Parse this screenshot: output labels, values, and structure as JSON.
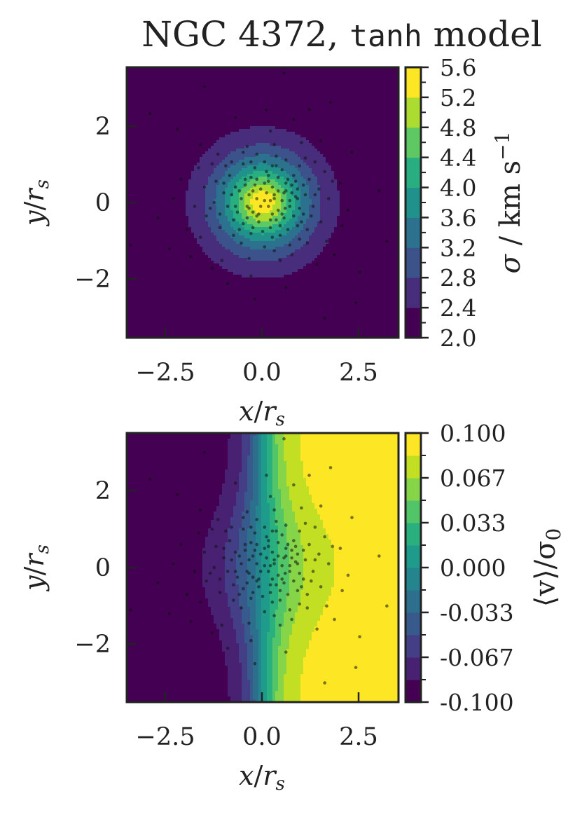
{
  "title": {
    "prefix": "NGC 4372, ",
    "code": "tanh",
    "suffix": " model"
  },
  "chart_data": [
    {
      "type": "heatmap",
      "name": "velocity-dispersion-map",
      "field": "radial",
      "x_tick_labels": [
        "−2.5",
        "0.0",
        "2.5"
      ],
      "y_tick_labels": [
        "2",
        "0",
        "−2"
      ],
      "xticks": [
        -2.5,
        0.0,
        2.5
      ],
      "yticks": [
        2,
        0,
        -2
      ],
      "xlim": [
        -3.5,
        3.5
      ],
      "ylim": [
        -3.5,
        3.5
      ],
      "xlabel": {
        "main": "x",
        "sep": "/",
        "sub_base": "r",
        "sub": "s"
      },
      "ylabel": {
        "main": "y",
        "sep": "/",
        "sub_base": "r",
        "sub": "s"
      },
      "colorbar": {
        "levels": [
          2.0,
          2.4,
          2.8,
          3.2,
          3.6,
          4.0,
          4.4,
          4.8,
          5.2,
          5.6
        ],
        "tick_labels": [
          "5.6",
          "5.2",
          "4.8",
          "4.4",
          "4.0",
          "3.6",
          "3.2",
          "2.8",
          "2.4",
          "2.0"
        ],
        "label": {
          "sym": "σ",
          "rest": " / km s",
          "exp": "−1"
        }
      },
      "colors": [
        "#440154",
        "#472d7b",
        "#3b528b",
        "#2c728e",
        "#21918c",
        "#28ae80",
        "#5ec962",
        "#addc30",
        "#fde725"
      ]
    },
    {
      "type": "heatmap",
      "name": "mean-velocity-map",
      "field": "rotation",
      "x_tick_labels": [
        "−2.5",
        "0.0",
        "2.5"
      ],
      "y_tick_labels": [
        "2",
        "0",
        "−2"
      ],
      "xticks": [
        -2.5,
        0.0,
        2.5
      ],
      "yticks": [
        2,
        0,
        -2
      ],
      "xlim": [
        -3.5,
        3.5
      ],
      "ylim": [
        -3.5,
        3.5
      ],
      "xlabel": {
        "main": "x",
        "sep": "/",
        "sub_base": "r",
        "sub": "s"
      },
      "ylabel": {
        "main": "y",
        "sep": "/",
        "sub_base": "r",
        "sub": "s"
      },
      "colorbar": {
        "levels": [
          -0.1,
          -0.0833,
          -0.0667,
          -0.05,
          -0.0333,
          -0.0167,
          0.0,
          0.0167,
          0.0333,
          0.05,
          0.0667,
          0.0833,
          0.1
        ],
        "tick_labels": [
          "0.100",
          "0.067",
          "0.033",
          "0.000",
          "-0.033",
          "-0.067",
          "-0.100"
        ],
        "label": {
          "text": "⟨v⟩/σ",
          "sub": "0"
        }
      },
      "colors": [
        "#440154",
        "#482173",
        "#433e85",
        "#38598c",
        "#2d708e",
        "#25858e",
        "#1e9b8a",
        "#2ab07f",
        "#52c569",
        "#86d549",
        "#c2df23",
        "#fde725"
      ]
    }
  ],
  "stars": [
    [
      0.05,
      0.05
    ],
    [
      0.3,
      0.2
    ],
    [
      -0.25,
      0.3
    ],
    [
      0.4,
      -0.2
    ],
    [
      -0.35,
      -0.15
    ],
    [
      0.15,
      0.55
    ],
    [
      -0.1,
      -0.5
    ],
    [
      0.6,
      0.3
    ],
    [
      -0.55,
      0.1
    ],
    [
      0.2,
      -0.65
    ],
    [
      0.75,
      0.45
    ],
    [
      0.85,
      0.15
    ],
    [
      0.7,
      -0.1
    ],
    [
      0.9,
      0.35
    ],
    [
      0.55,
      -0.4
    ],
    [
      -0.7,
      0.4
    ],
    [
      -0.45,
      0.6
    ],
    [
      0.1,
      0.8
    ],
    [
      -0.2,
      0.9
    ],
    [
      0.35,
      0.95
    ],
    [
      0.8,
      0.7
    ],
    [
      1.1,
      0.2
    ],
    [
      1.05,
      -0.3
    ],
    [
      0.9,
      -0.6
    ],
    [
      0.45,
      -0.85
    ],
    [
      -0.3,
      -0.8
    ],
    [
      -0.75,
      -0.45
    ],
    [
      -0.9,
      -0.1
    ],
    [
      -1.0,
      0.25
    ],
    [
      -0.85,
      0.7
    ],
    [
      -0.5,
      1.0
    ],
    [
      0.6,
      1.1
    ],
    [
      1.2,
      0.6
    ],
    [
      1.3,
      -0.1
    ],
    [
      1.15,
      -0.7
    ],
    [
      0.7,
      -1.1
    ],
    [
      0.05,
      -1.15
    ],
    [
      -0.55,
      -1.05
    ],
    [
      -1.1,
      -0.65
    ],
    [
      -1.25,
      0.0
    ],
    [
      -1.2,
      0.55
    ],
    [
      -0.8,
      1.05
    ],
    [
      -0.15,
      1.25
    ],
    [
      0.25,
      -0.3
    ],
    [
      -0.05,
      0.35
    ],
    [
      0.5,
      0.05
    ],
    [
      -0.4,
      -0.4
    ],
    [
      0.15,
      -0.1
    ],
    [
      -0.15,
      0.1
    ],
    [
      0.65,
      0.6
    ],
    [
      -0.6,
      -0.7
    ],
    [
      0.95,
      -0.95
    ],
    [
      1.45,
      0.35
    ],
    [
      1.5,
      -0.5
    ],
    [
      -1.45,
      -0.35
    ],
    [
      -1.5,
      0.4
    ],
    [
      -1.3,
      1.0
    ],
    [
      1.35,
      1.05
    ],
    [
      0.3,
      1.5
    ],
    [
      -0.4,
      1.45
    ],
    [
      0.45,
      -1.5
    ],
    [
      -0.35,
      -1.45
    ],
    [
      1.7,
      0.1
    ],
    [
      -1.75,
      -0.1
    ],
    [
      1.65,
      -1.0
    ],
    [
      -1.65,
      0.9
    ],
    [
      1.0,
      1.55
    ],
    [
      -1.05,
      -1.5
    ],
    [
      0.2,
      1.85
    ],
    [
      -0.3,
      -1.9
    ],
    [
      2.0,
      0.5
    ],
    [
      -2.1,
      0.6
    ],
    [
      2.05,
      -0.6
    ],
    [
      -1.95,
      -0.7
    ],
    [
      1.5,
      1.6
    ],
    [
      -1.6,
      1.5
    ],
    [
      1.4,
      -1.6
    ],
    [
      -1.3,
      -1.7
    ],
    [
      0.8,
      2.15
    ],
    [
      -0.7,
      2.2
    ],
    [
      0.6,
      -2.2
    ],
    [
      -0.9,
      -2.1
    ],
    [
      2.3,
      1.3
    ],
    [
      -2.4,
      -1.2
    ],
    [
      2.5,
      -1.8
    ],
    [
      -2.2,
      1.9
    ],
    [
      0.55,
      3.35
    ],
    [
      1.6,
      -3.0
    ],
    [
      -3.4,
      -1.1
    ],
    [
      3.2,
      -1.0
    ],
    [
      2.4,
      -2.6
    ],
    [
      -1.5,
      3.0
    ],
    [
      0.95,
      0.95
    ],
    [
      -0.95,
      0.95
    ],
    [
      0.25,
      0.4
    ],
    [
      0.4,
      0.65
    ],
    [
      -0.25,
      -0.25
    ],
    [
      -0.1,
      -0.3
    ],
    [
      0.7,
      0.05
    ],
    [
      0.35,
      -0.45
    ],
    [
      -0.45,
      0.45
    ],
    [
      0.1,
      0.25
    ],
    [
      0.55,
      0.25
    ],
    [
      -0.3,
      0.65
    ],
    [
      0.0,
      -0.75
    ],
    [
      0.25,
      -0.9
    ],
    [
      -0.65,
      -0.25
    ],
    [
      0.8,
      -0.35
    ],
    [
      -0.8,
      0.2
    ],
    [
      1.05,
      0.45
    ],
    [
      0.5,
      0.85
    ],
    [
      -0.15,
      0.6
    ],
    [
      0.65,
      -0.7
    ],
    [
      -0.5,
      -0.55
    ],
    [
      0.2,
      0.05
    ],
    [
      -0.05,
      -0.1
    ],
    [
      1.25,
      -0.35
    ],
    [
      -1.1,
      -0.3
    ],
    [
      0.95,
      -0.15
    ],
    [
      -0.35,
      0.2
    ],
    [
      0.85,
      0.55
    ],
    [
      1.6,
      0.8
    ],
    [
      -1.6,
      -0.9
    ],
    [
      0.3,
      -1.25
    ],
    [
      1.1,
      1.15
    ],
    [
      -1.15,
      1.25
    ],
    [
      2.2,
      -0.2
    ],
    [
      -2.3,
      0.1
    ],
    [
      0.1,
      2.4
    ],
    [
      -0.2,
      -2.5
    ],
    [
      1.85,
      -1.35
    ],
    [
      -1.85,
      -1.4
    ],
    [
      1.2,
      2.4
    ],
    [
      -2.7,
      -0.4
    ],
    [
      3.0,
      0.3
    ],
    [
      1.75,
      2.6
    ],
    [
      -2.9,
      2.3
    ],
    [
      0.4,
      0.3
    ],
    [
      0.58,
      -0.15
    ],
    [
      -0.2,
      0.45
    ],
    [
      0.3,
      0.1
    ],
    [
      0.75,
      0.25
    ],
    [
      -0.6,
      0.3
    ],
    [
      0.45,
      -0.6
    ],
    [
      -0.25,
      -0.65
    ],
    [
      0.15,
      0.7
    ],
    [
      0.05,
      1.05
    ],
    [
      -0.75,
      -0.85
    ],
    [
      1.35,
      0.2
    ],
    [
      0.6,
      0.5
    ],
    [
      -0.4,
      -0.1
    ],
    [
      0.9,
      0.1
    ],
    [
      -0.15,
      -0.35
    ],
    [
      0.2,
      -0.45
    ],
    [
      1.0,
      -0.5
    ],
    [
      0.25,
      0.95
    ],
    [
      -0.7,
      -0.1
    ],
    [
      0.35,
      1.2
    ],
    [
      -1.35,
      -0.15
    ],
    [
      1.8,
      0.55
    ],
    [
      -0.5,
      1.3
    ],
    [
      0.75,
      -1.35
    ],
    [
      -1.0,
      0.5
    ],
    [
      1.15,
      -1.05
    ],
    [
      -0.3,
      1.05
    ],
    [
      0.05,
      0.5
    ],
    [
      0.5,
      -0.3
    ]
  ]
}
